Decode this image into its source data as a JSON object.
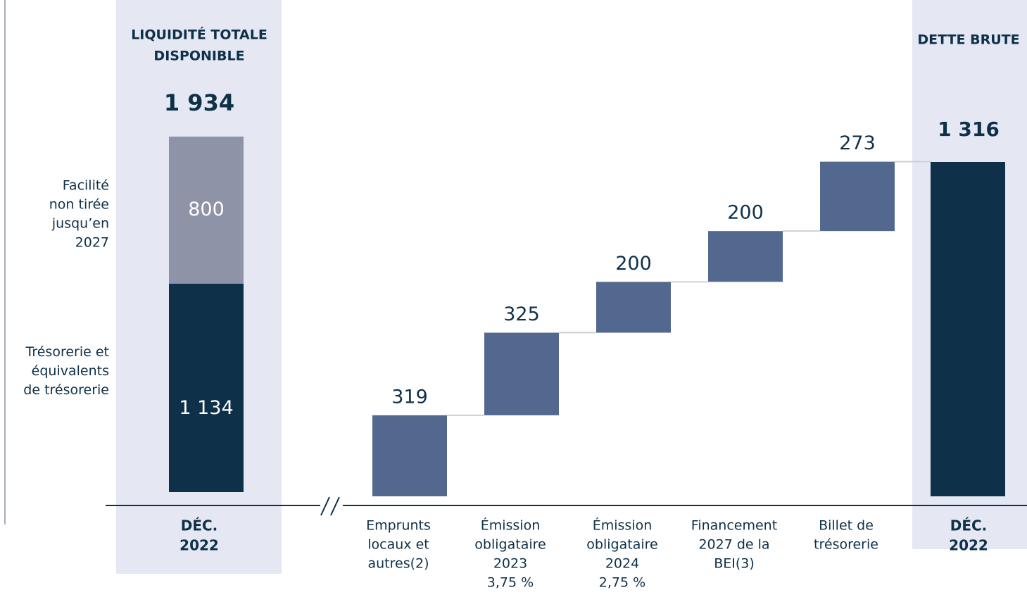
{
  "chart_data": [
    {
      "type": "stacked-bar",
      "title": [
        "LIQUIDITÉ TOTALE",
        "DISPONIBLE"
      ],
      "total": 1934,
      "total_label": "1 934",
      "categories": [
        [
          "DÉC.",
          "2022"
        ]
      ],
      "series": [
        {
          "name": [
            "Trésorerie et",
            "équivalents",
            "de trésorerie"
          ],
          "color": "#0e3049",
          "values": [
            1134
          ],
          "value_labels": [
            "1 134"
          ]
        },
        {
          "name": [
            "Facilité",
            "non tirée",
            "jusqu’en",
            "2027"
          ],
          "color": "#8e93a8",
          "values": [
            800
          ]
        }
      ]
    },
    {
      "type": "waterfall",
      "title": [
        "DETTE BRUTE"
      ],
      "categories": [
        [
          "Emprunts",
          "locaux et",
          "autres(2)"
        ],
        [
          "Émission",
          "obligataire",
          "2023",
          "3,75 %"
        ],
        [
          "Émission",
          "obligataire",
          "2024",
          "2,75 %"
        ],
        [
          "Financement",
          "2027 de la",
          "BEI(3)"
        ],
        [
          "Billet de",
          "trésorerie"
        ]
      ],
      "values": [
        319,
        325,
        200,
        200,
        273
      ],
      "color": "#53688f",
      "total": 1316,
      "total_label": "1 316",
      "total_category": [
        "DÉC.",
        "2022"
      ],
      "total_color": "#0e3049"
    }
  ]
}
